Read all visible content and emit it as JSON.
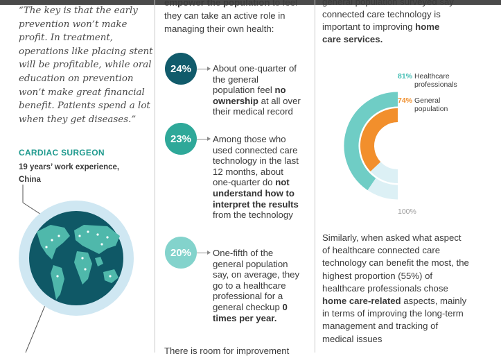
{
  "left": {
    "quote": "“The key is that the early prevention won’t make profit. In treatment, operations like placing stent will be profitable, while oral education on prevention won’t make great financial benefit. Patients spend a lot when they get diseases.”",
    "role": "CARDIAC SURGEON",
    "experience": "19 years’ work experience, China"
  },
  "middle": {
    "top_bold": "empower the population",
    "top_rest": " to feel they can take an active role in managing their own health:",
    "stats": [
      {
        "value": "24%",
        "color": "#115b6b",
        "pre": "About one-quarter of the general population feel ",
        "bold": "no ownership",
        "post": " at all over their medical record"
      },
      {
        "value": "23%",
        "color": "#2ea899",
        "pre": "Among those who used connected care technology in the last 12 months, about one-quarter do ",
        "bold": "not understand how to interpret the results",
        "post": " from the technology"
      },
      {
        "value": "20%",
        "color": "#83d3cc",
        "pre": "One-fifth of the general population say, on average, they go to a healthcare professional for a general checkup ",
        "bold": "0 times per year.",
        "post": ""
      }
    ],
    "bottom": "There is room for improvement"
  },
  "right": {
    "top_pre": "general population surveyed say connected care technology is important to improving ",
    "top_bold": "home care services.",
    "body_pre": "Similarly, when asked what aspect of healthcare connected care technology can benefit the most, the highest proportion (55%) of healthcare professionals chose ",
    "body_bold": "home care-related",
    "body_post": " aspects, mainly in terms of improving the long-term management and tracking of medical issues"
  },
  "colors": {
    "teal_light": "#6fcdc5",
    "orange": "#f28f2c",
    "track": "#dcf0f5",
    "dark_teal": "#115b6b"
  },
  "chart_data": {
    "type": "pie",
    "subtype": "nested-donut",
    "max_label": "100%",
    "series": [
      {
        "name": "Healthcare professionals",
        "value": 81,
        "color": "#6fcdc5"
      },
      {
        "name": "General population",
        "value": 74,
        "color": "#f28f2c"
      }
    ],
    "legend": [
      {
        "pct": "81%",
        "label": "Healthcare professionals"
      },
      {
        "pct": "74%",
        "label": "General population"
      }
    ]
  }
}
